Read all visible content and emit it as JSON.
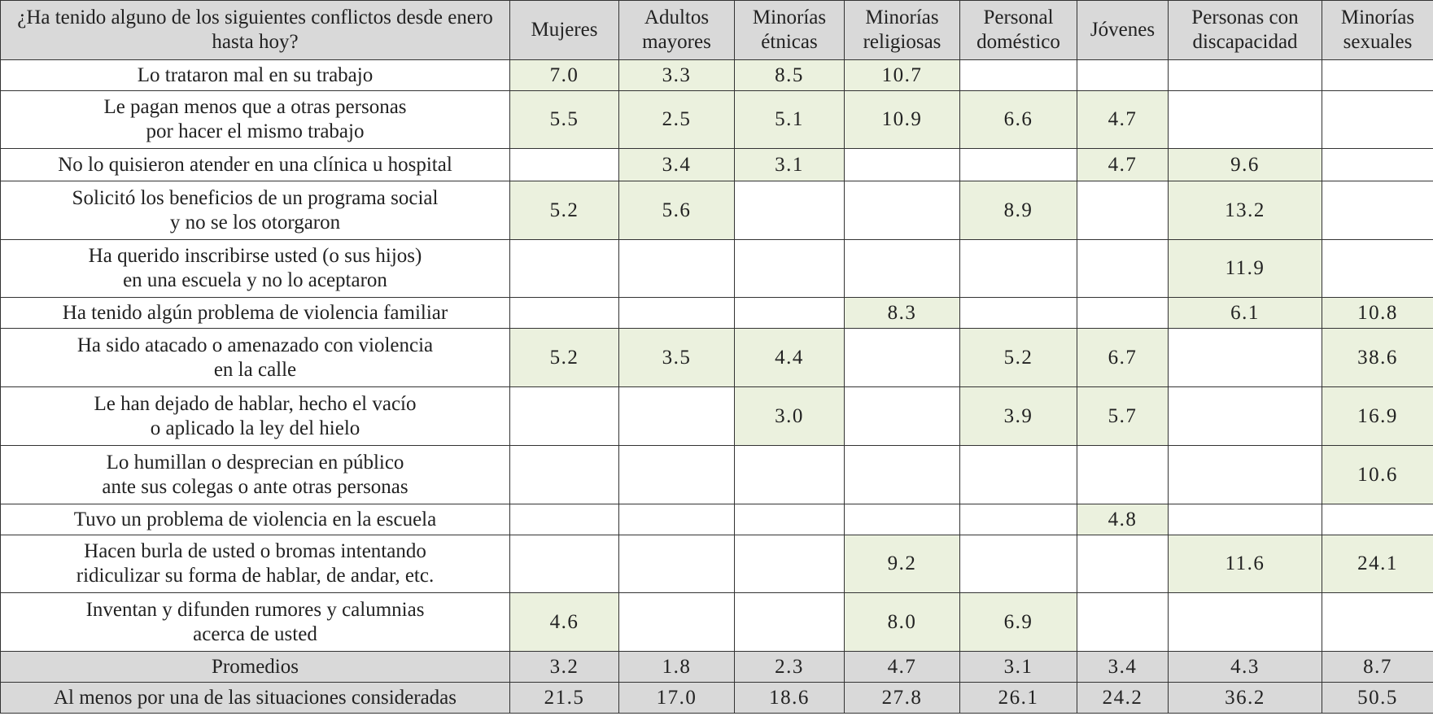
{
  "header": {
    "question": "¿Ha tenido alguno de los siguientes conflictos desde enero hasta hoy?",
    "groups": [
      "Mujeres",
      "Adultos mayores",
      "Minorías étnicas",
      "Minorías religiosas",
      "Personal doméstico",
      "Jóvenes",
      "Personas con discapacidad",
      "Minorías sexuales"
    ]
  },
  "rows": [
    {
      "label": "Lo trataron mal en su trabajo",
      "values": [
        "7.0",
        "3.3",
        "8.5",
        "10.7",
        "",
        "",
        "",
        ""
      ]
    },
    {
      "label": "Le pagan menos que a otras personas por hacer el mismo trabajo",
      "values": [
        "5.5",
        "2.5",
        "5.1",
        "10.9",
        "6.6",
        "4.7",
        "",
        ""
      ]
    },
    {
      "label": "No lo quisieron atender en una clínica u hospital",
      "values": [
        "",
        "3.4",
        "3.1",
        "",
        "",
        "4.7",
        "9.6",
        ""
      ]
    },
    {
      "label": "Solicitó los beneficios de un programa social y no se los otorgaron",
      "values": [
        "5.2",
        "5.6",
        "",
        "",
        "8.9",
        "",
        "13.2",
        ""
      ]
    },
    {
      "label": "Ha querido inscribirse usted (o sus hijos) en una escuela y no lo aceptaron",
      "values": [
        "",
        "",
        "",
        "",
        "",
        "",
        "11.9",
        ""
      ]
    },
    {
      "label": "Ha tenido algún problema de violencia familiar",
      "values": [
        "",
        "",
        "",
        "8.3",
        "",
        "",
        "6.1",
        "10.8"
      ]
    },
    {
      "label": "Ha sido atacado o amenazado con violencia en la calle",
      "values": [
        "5.2",
        "3.5",
        "4.4",
        "",
        "5.2",
        "6.7",
        "",
        "38.6"
      ]
    },
    {
      "label": "Le han dejado de hablar, hecho el vacío o aplicado la ley del hielo",
      "values": [
        "",
        "",
        "3.0",
        "",
        "3.9",
        "5.7",
        "",
        "16.9"
      ]
    },
    {
      "label": "Lo humillan o desprecian en público ante sus colegas o ante otras personas",
      "values": [
        "",
        "",
        "",
        "",
        "",
        "",
        "",
        "10.6"
      ]
    },
    {
      "label": "Tuvo un problema de violencia en la escuela",
      "values": [
        "",
        "",
        "",
        "",
        "",
        "4.8",
        "",
        ""
      ]
    },
    {
      "label": "Hacen burla de usted o bromas intentando ridiculizar su forma de hablar, de andar, etc.",
      "values": [
        "",
        "",
        "",
        "9.2",
        "",
        "",
        "11.6",
        "24.1"
      ]
    },
    {
      "label": "Inventan y difunden rumores y calumnias acerca de usted",
      "values": [
        "4.6",
        "",
        "",
        "8.0",
        "6.9",
        "",
        "",
        ""
      ]
    }
  ],
  "summary": [
    {
      "label": "Promedios",
      "values": [
        "3.2",
        "1.8",
        "2.3",
        "4.7",
        "3.1",
        "3.4",
        "4.3",
        "8.7"
      ]
    },
    {
      "label": "Al menos por una de las situaciones consideradas",
      "values": [
        "21.5",
        "17.0",
        "18.6",
        "27.8",
        "26.1",
        "24.2",
        "36.2",
        "50.5"
      ]
    }
  ],
  "colors": {
    "header_bg": "#d9d9d9",
    "highlight_bg": "#ebf1de",
    "border": "#333333"
  }
}
